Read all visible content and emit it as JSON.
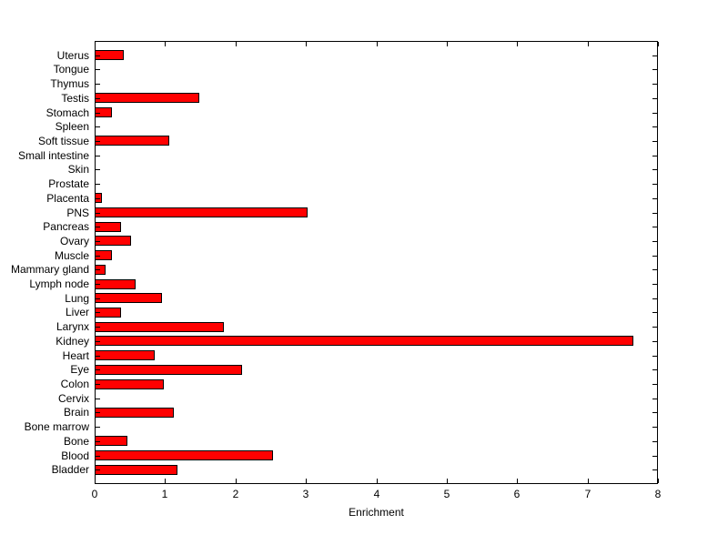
{
  "figure": {
    "background_color": "#FFFFFF"
  },
  "chart_data": {
    "type": "bar",
    "orientation": "horizontal",
    "title": "",
    "xlabel": "Enrichment",
    "ylabel": "",
    "xlim": [
      0,
      8
    ],
    "x_ticks": [
      0,
      1,
      2,
      3,
      4,
      5,
      6,
      7,
      8
    ],
    "grid": false,
    "legend_position": "none",
    "bar_fill_color": "#FF0000",
    "bar_edge_color": "#000000",
    "axis_color": "#000000",
    "categories_top_to_bottom": [
      "Uterus",
      "Tongue",
      "Thymus",
      "Testis",
      "Stomach",
      "Spleen",
      "Soft tissue",
      "Small intestine",
      "Skin",
      "Prostate",
      "Placenta",
      "PNS",
      "Pancreas",
      "Ovary",
      "Muscle",
      "Mammary gland",
      "Lymph node",
      "Lung",
      "Liver",
      "Larynx",
      "Kidney",
      "Heart",
      "Eye",
      "Colon",
      "Cervix",
      "Brain",
      "Bone marrow",
      "Bone",
      "Blood",
      "Bladder"
    ],
    "values": [
      0.42,
      0,
      0,
      1.48,
      0.24,
      0,
      1.06,
      0,
      0,
      0,
      0.1,
      3.03,
      0.38,
      0.52,
      0.24,
      0.16,
      0.58,
      0.96,
      0.38,
      1.83,
      7.65,
      0.85,
      2.1,
      0.98,
      0,
      1.13,
      0,
      0.46,
      2.53,
      1.17
    ]
  }
}
